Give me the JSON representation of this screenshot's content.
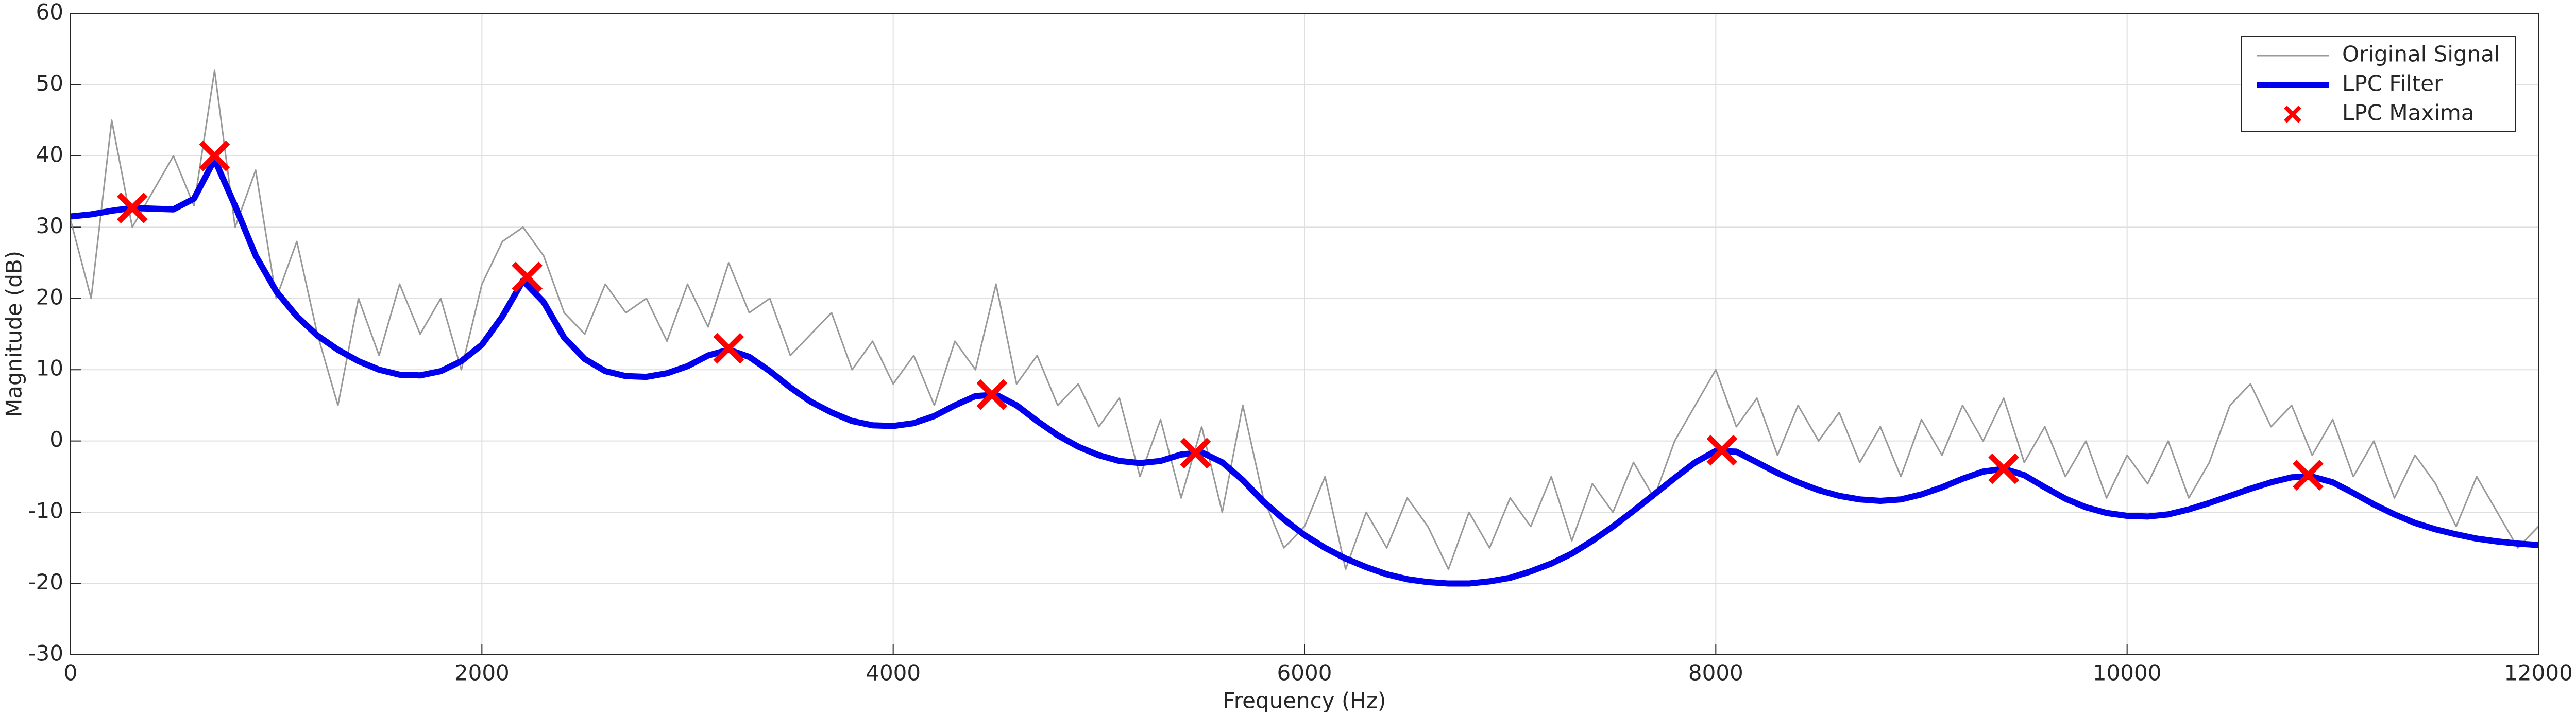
{
  "chart_data": {
    "type": "line",
    "xlabel": "Frequency (Hz)",
    "ylabel": "Magnitude (dB)",
    "xlim": [
      0,
      12000
    ],
    "xticks": [
      0,
      2000,
      4000,
      6000,
      8000,
      10000,
      12000
    ],
    "ylim": [
      -30,
      60
    ],
    "yticks": [
      -30,
      -20,
      -10,
      0,
      10,
      20,
      30,
      40,
      50,
      60
    ],
    "grid": true,
    "legend": "upper right",
    "x": [
      0,
      100,
      200,
      300,
      400,
      500,
      600,
      700,
      800,
      900,
      1000,
      1100,
      1200,
      1300,
      1400,
      1500,
      1600,
      1700,
      1800,
      1900,
      2000,
      2100,
      2200,
      2300,
      2400,
      2500,
      2600,
      2700,
      2800,
      2900,
      3000,
      3100,
      3200,
      3300,
      3400,
      3500,
      3600,
      3700,
      3800,
      3900,
      4000,
      4100,
      4200,
      4300,
      4400,
      4500,
      4600,
      4700,
      4800,
      4900,
      5000,
      5100,
      5200,
      5300,
      5400,
      5500,
      5600,
      5700,
      5800,
      5900,
      6000,
      6100,
      6200,
      6300,
      6400,
      6500,
      6600,
      6700,
      6800,
      6900,
      7000,
      7100,
      7200,
      7300,
      7400,
      7500,
      7600,
      7700,
      7800,
      7900,
      8000,
      8100,
      8200,
      8300,
      8400,
      8500,
      8600,
      8700,
      8800,
      8900,
      9000,
      9100,
      9200,
      9300,
      9400,
      9500,
      9600,
      9700,
      9800,
      9900,
      10000,
      10100,
      10200,
      10300,
      10400,
      10500,
      10600,
      10700,
      10800,
      10900,
      11000,
      11100,
      11200,
      11300,
      11400,
      11500,
      11600,
      11700,
      11800,
      11900,
      12000
    ],
    "series": [
      {
        "name": "Original Signal",
        "color": "#999999",
        "marker": "none",
        "values": [
          31,
          20,
          45,
          30,
          35,
          40,
          33,
          52,
          30,
          38,
          20,
          28,
          15,
          5,
          20,
          12,
          22,
          15,
          20,
          10,
          22,
          28,
          30,
          26,
          18,
          15,
          22,
          18,
          20,
          14,
          22,
          16,
          25,
          18,
          20,
          12,
          15,
          18,
          10,
          14,
          8,
          12,
          5,
          14,
          10,
          22,
          8,
          12,
          5,
          8,
          2,
          6,
          -5,
          3,
          -8,
          2,
          -10,
          5,
          -8,
          -15,
          -12,
          -5,
          -18,
          -10,
          -15,
          -8,
          -12,
          -18,
          -10,
          -15,
          -8,
          -12,
          -5,
          -14,
          -6,
          -10,
          -3,
          -8,
          0,
          5,
          10,
          2,
          6,
          -2,
          5,
          0,
          4,
          -3,
          2,
          -5,
          3,
          -2,
          5,
          0,
          6,
          -3,
          2,
          -5,
          0,
          -8,
          -2,
          -6,
          0,
          -8,
          -3,
          5,
          8,
          2,
          5,
          -2,
          3,
          -5,
          0,
          -8,
          -2,
          -6,
          -12,
          -5,
          -10,
          -15,
          -12
        ]
      },
      {
        "name": "LPC Filter",
        "color": "#0000ee",
        "marker": "none",
        "values": [
          31.5,
          31.8,
          32.3,
          32.7,
          32.6,
          32.5,
          34,
          39.5,
          33,
          26,
          21,
          17.5,
          14.8,
          12.8,
          11.2,
          10,
          9.3,
          9.2,
          9.8,
          11.2,
          13.5,
          17.5,
          22.5,
          19.5,
          14.5,
          11.5,
          9.8,
          9.1,
          9.0,
          9.5,
          10.5,
          12,
          12.8,
          11.8,
          9.8,
          7.5,
          5.5,
          4,
          2.8,
          2.2,
          2.1,
          2.5,
          3.5,
          5,
          6.3,
          6.5,
          5,
          2.8,
          0.8,
          -0.8,
          -2,
          -2.8,
          -3.1,
          -2.8,
          -1.9,
          -1.6,
          -3,
          -5.5,
          -8.5,
          -11,
          -13.2,
          -15,
          -16.5,
          -17.7,
          -18.7,
          -19.4,
          -19.8,
          -20,
          -20,
          -19.7,
          -19.2,
          -18.3,
          -17.2,
          -15.8,
          -14,
          -12,
          -9.8,
          -7.5,
          -5.2,
          -3,
          -1.4,
          -1.5,
          -3,
          -4.5,
          -5.8,
          -6.9,
          -7.7,
          -8.2,
          -8.4,
          -8.2,
          -7.5,
          -6.5,
          -5.3,
          -4.3,
          -3.9,
          -4.8,
          -6.5,
          -8.1,
          -9.3,
          -10.1,
          -10.5,
          -10.6,
          -10.3,
          -9.6,
          -8.7,
          -7.7,
          -6.7,
          -5.8,
          -5.1,
          -5,
          -5.8,
          -7.3,
          -8.9,
          -10.3,
          -11.5,
          -12.4,
          -13.1,
          -13.7,
          -14.1,
          -14.4,
          -14.6
        ]
      },
      {
        "name": "LPC Maxima",
        "color": "#ff0000",
        "marker": "x",
        "x": [
          300,
          700,
          2220,
          3200,
          4480,
          5470,
          8030,
          9400,
          10880
        ],
        "values": [
          32.7,
          40,
          23,
          13,
          6.5,
          -1.7,
          -1.3,
          -3.9,
          -4.8
        ]
      }
    ]
  }
}
